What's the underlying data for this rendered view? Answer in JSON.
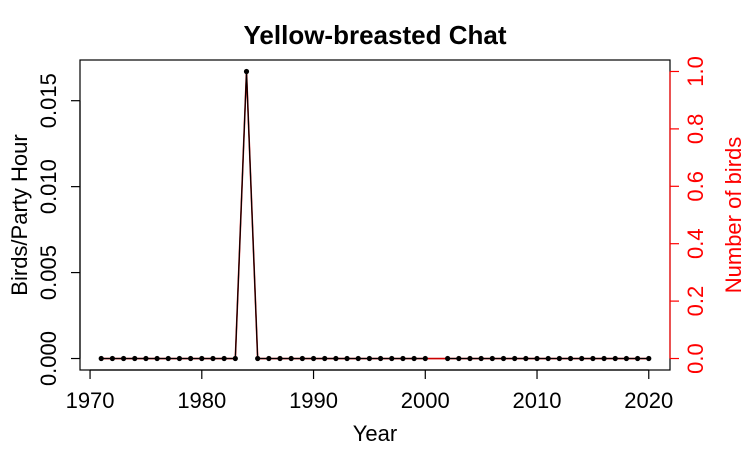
{
  "chart_data": {
    "type": "line",
    "title": "Yellow-breasted Chat",
    "xlabel": "Year",
    "ylabel": "Birds/Party Hour",
    "y2label": "Number of birds",
    "xlim": [
      1969.1,
      2021.9
    ],
    "ylim": [
      -0.000668,
      0.017368
    ],
    "y2lim": [
      -0.04,
      1.04
    ],
    "xticks": [
      1970,
      1980,
      1990,
      2000,
      2010,
      2020
    ],
    "yticks": [
      "0.000",
      "0.005",
      "0.010",
      "0.015"
    ],
    "y2ticks": [
      "0.0",
      "0.2",
      "0.4",
      "0.6",
      "0.8",
      "1.0"
    ],
    "grid": false,
    "colors": {
      "birds_per_hour": "#000000",
      "number_of_birds": "#cc0000",
      "right_axis": "#ff0000"
    },
    "series": [
      {
        "x": [
          1971,
          1972,
          1973,
          1974,
          1975,
          1976,
          1977,
          1978,
          1979,
          1980,
          1981,
          1982,
          1983,
          1984,
          1985,
          1986,
          1987,
          1988,
          1989,
          1990,
          1991,
          1992,
          1993,
          1994,
          1995,
          1996,
          1997,
          1998,
          1999,
          2000
        ],
        "y": [
          0,
          0,
          0,
          0,
          0,
          0,
          0,
          0,
          0,
          0,
          0,
          0,
          0,
          0.0167,
          0,
          0,
          0,
          0,
          0,
          0,
          0,
          0,
          0,
          0,
          0,
          0,
          0,
          0,
          0,
          0
        ]
      },
      {
        "x": [
          2002,
          2003,
          2004,
          2005,
          2006,
          2007,
          2008,
          2009,
          2010,
          2011,
          2012,
          2013,
          2014,
          2015,
          2016,
          2017,
          2018,
          2019,
          2020
        ],
        "y": [
          0,
          0,
          0,
          0,
          0,
          0,
          0,
          0,
          0,
          0,
          0,
          0,
          0,
          0,
          0,
          0,
          0,
          0,
          0
        ]
      },
      {
        "x": [
          1971,
          1972,
          1973,
          1974,
          1975,
          1976,
          1977,
          1978,
          1979,
          1980,
          1981,
          1982,
          1983,
          1984,
          1985,
          1986,
          1987,
          1988,
          1989,
          1990,
          1991,
          1992,
          1993,
          1994,
          1995,
          1996,
          1997,
          1998,
          1999,
          2000,
          2001,
          2002,
          2003,
          2004,
          2005,
          2006,
          2007,
          2008,
          2009,
          2010,
          2011,
          2012,
          2013,
          2014,
          2015,
          2016,
          2017,
          2018,
          2019,
          2020
        ],
        "y": [
          0,
          0,
          0,
          0,
          0,
          0,
          0,
          0,
          0,
          0,
          0,
          0,
          0,
          1,
          0,
          0,
          0,
          0,
          0,
          0,
          0,
          0,
          0,
          0,
          0,
          0,
          0,
          0,
          0,
          0,
          0,
          0,
          0,
          0,
          0,
          0,
          0,
          0,
          0,
          0,
          0,
          0,
          0,
          0,
          0,
          0,
          0,
          0,
          0,
          0
        ]
      }
    ]
  }
}
